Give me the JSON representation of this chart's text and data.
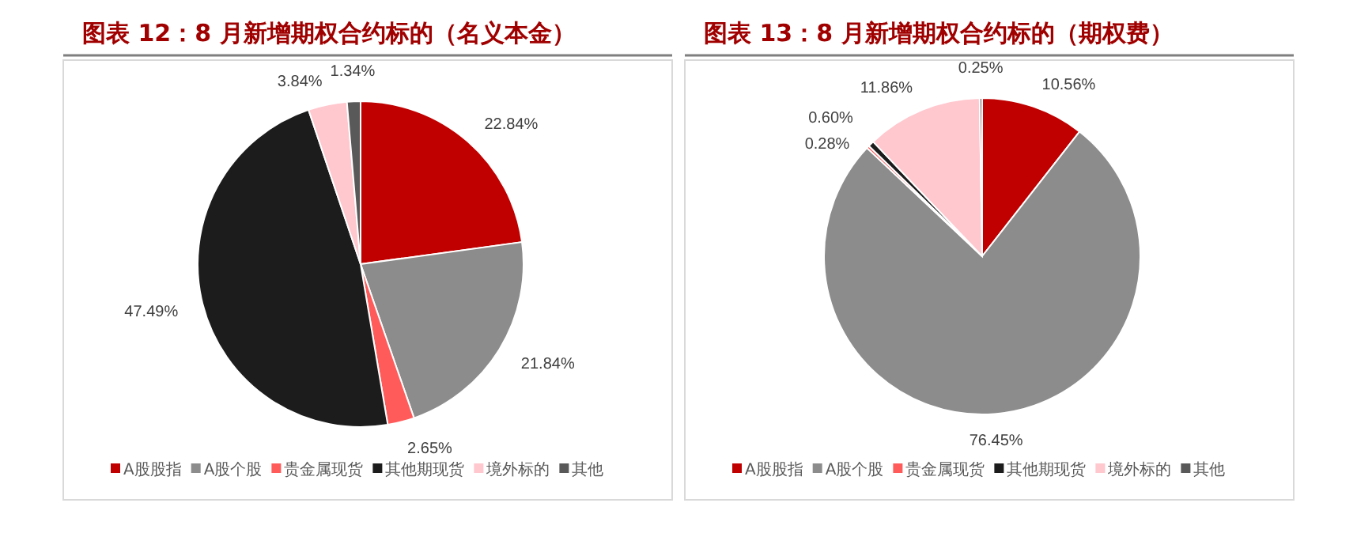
{
  "chart_data": [
    {
      "type": "pie",
      "title": "图表 12：8 月新增期权合约标的（名义本金）",
      "categories": [
        "A股股指",
        "A股个股",
        "贵金属现货",
        "其他期现货",
        "境外标的",
        "其他"
      ],
      "values": [
        22.84,
        21.84,
        2.65,
        47.49,
        3.84,
        1.34
      ],
      "colors": [
        "#c00000",
        "#8c8c8c",
        "#ff5b5b",
        "#1c1c1c",
        "#ffc7ce",
        "#595959"
      ],
      "value_labels": [
        "22.84%",
        "21.84%",
        "2.65%",
        "47.49%",
        "3.84%",
        "1.34%"
      ],
      "legend": "bottom"
    },
    {
      "type": "pie",
      "title": "图表 13：8 月新增期权合约标的（期权费）",
      "categories": [
        "A股股指",
        "A股个股",
        "贵金属现货",
        "其他期现货",
        "境外标的",
        "其他"
      ],
      "values": [
        10.56,
        76.45,
        0.28,
        0.6,
        11.86,
        0.25
      ],
      "colors": [
        "#c00000",
        "#8c8c8c",
        "#ff5b5b",
        "#1c1c1c",
        "#ffc7ce",
        "#595959"
      ],
      "value_labels": [
        "10.56%",
        "76.45%",
        "0.28%",
        "0.60%",
        "11.86%",
        "0.25%"
      ],
      "legend": "bottom"
    }
  ]
}
